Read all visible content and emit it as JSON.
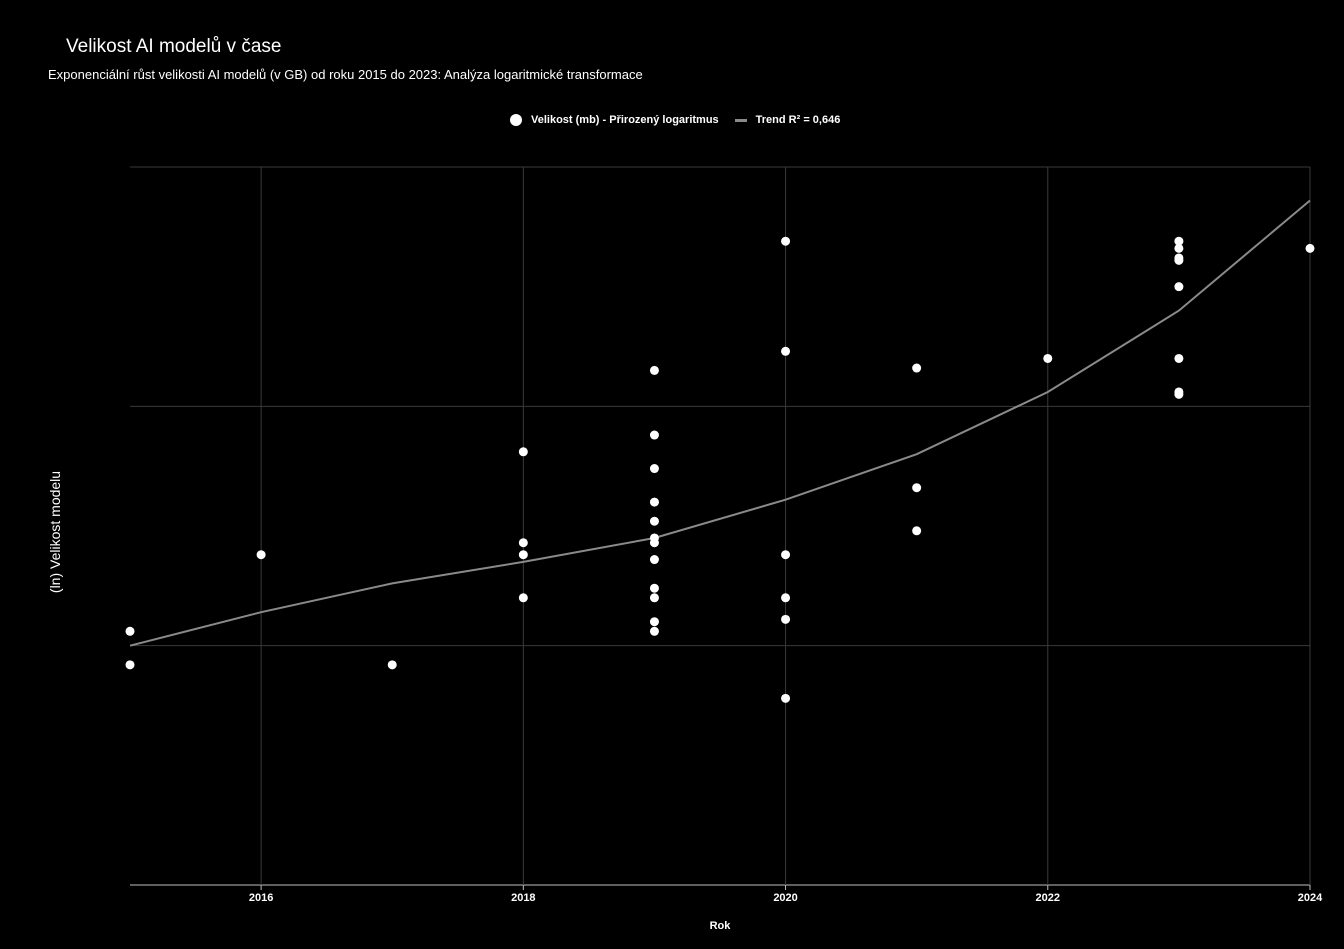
{
  "chart_data": {
    "type": "scatter",
    "title": "Velikost AI modelů v čase",
    "subtitle": "Exponenciální růst velikosti AI modelů (v GB) od roku 2015 do 2023: Analýza logaritmické transformace",
    "xlabel": "Rok",
    "ylabel": "(ln) Velikost modelu",
    "xlim": [
      2015,
      2024
    ],
    "ylim": [
      -10,
      20
    ],
    "x_ticks": [
      2016,
      2018,
      2020,
      2022,
      2024
    ],
    "y_ticks": [
      -10,
      0,
      10,
      20
    ],
    "grid": true,
    "legend_position": "top-center",
    "colors": {
      "background": "#000000",
      "points": "#ffffff",
      "trend": "#8a8a8a",
      "grid": "#3a3a3a"
    },
    "series": [
      {
        "name": "Velikost (mb) - Přirozený logaritmus",
        "type": "scatter",
        "points": [
          [
            2015,
            0.6
          ],
          [
            2015,
            -0.8
          ],
          [
            2016,
            3.8
          ],
          [
            2017,
            -0.8
          ],
          [
            2018,
            8.1
          ],
          [
            2018,
            4.3
          ],
          [
            2018,
            3.8
          ],
          [
            2018,
            2.0
          ],
          [
            2019,
            11.5
          ],
          [
            2019,
            8.8
          ],
          [
            2019,
            7.4
          ],
          [
            2019,
            6.0
          ],
          [
            2019,
            5.2
          ],
          [
            2019,
            4.5
          ],
          [
            2019,
            4.3
          ],
          [
            2019,
            3.6
          ],
          [
            2019,
            2.4
          ],
          [
            2019,
            2.0
          ],
          [
            2019,
            1.0
          ],
          [
            2019,
            0.6
          ],
          [
            2020,
            16.9
          ],
          [
            2020,
            12.3
          ],
          [
            2020,
            3.8
          ],
          [
            2020,
            2.0
          ],
          [
            2020,
            1.1
          ],
          [
            2020,
            -2.2
          ],
          [
            2021,
            11.6
          ],
          [
            2021,
            6.6
          ],
          [
            2021,
            4.8
          ],
          [
            2022,
            12.0
          ],
          [
            2023,
            16.9
          ],
          [
            2023,
            16.6
          ],
          [
            2023,
            16.2
          ],
          [
            2023,
            16.1
          ],
          [
            2023,
            15.0
          ],
          [
            2023,
            12.0
          ],
          [
            2023,
            10.6
          ],
          [
            2023,
            10.5
          ],
          [
            2024,
            16.6
          ]
        ]
      },
      {
        "name": "Trend R² = 0,646",
        "type": "line",
        "points": [
          [
            2015,
            0.0
          ],
          [
            2016,
            1.4
          ],
          [
            2017,
            2.6
          ],
          [
            2018,
            3.5
          ],
          [
            2019,
            4.5
          ],
          [
            2020,
            6.1
          ],
          [
            2021,
            8.0
          ],
          [
            2022,
            10.6
          ],
          [
            2023,
            14.0
          ],
          [
            2024,
            18.6
          ]
        ]
      }
    ]
  }
}
